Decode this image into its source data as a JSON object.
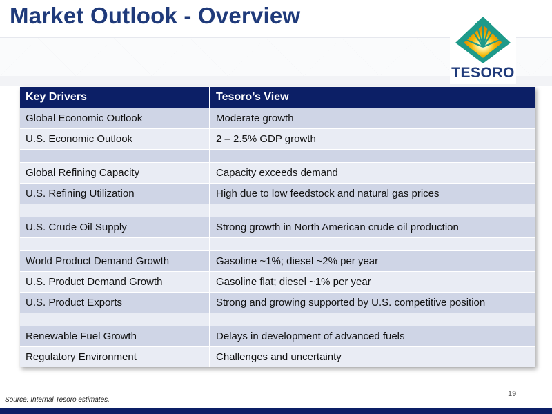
{
  "title": "Market Outlook - Overview",
  "logo": {
    "text": "TESORO"
  },
  "table": {
    "headers": [
      "Key Drivers",
      "Tesoro’s View"
    ],
    "rows": [
      {
        "driver": "Global Economic Outlook",
        "view": "Moderate growth"
      },
      {
        "driver": "U.S. Economic Outlook",
        "view": "2 – 2.5% GDP growth"
      },
      {
        "driver": "",
        "view": ""
      },
      {
        "driver": "Global Refining Capacity",
        "view": "Capacity exceeds demand"
      },
      {
        "driver": "U.S. Refining Utilization",
        "view": "High due to low feedstock and natural gas prices"
      },
      {
        "driver": "",
        "view": ""
      },
      {
        "driver": "U.S. Crude Oil Supply",
        "view": "Strong growth in North American crude oil production"
      },
      {
        "driver": "",
        "view": ""
      },
      {
        "driver": "World Product Demand Growth",
        "view": "Gasoline ~1%; diesel ~2% per year"
      },
      {
        "driver": "U.S. Product Demand Growth",
        "view": "Gasoline flat; diesel ~1% per year"
      },
      {
        "driver": "U.S. Product Exports",
        "view": "Strong and growing supported by U.S. competitive position"
      },
      {
        "driver": "",
        "view": ""
      },
      {
        "driver": "Renewable Fuel Growth",
        "view": "Delays in development of advanced fuels"
      },
      {
        "driver": "Regulatory Environment",
        "view": "Challenges and uncertainty"
      }
    ]
  },
  "page_number": "19",
  "source": "Source: Internal Tesoro estimates.",
  "colors": {
    "title": "#1f3a7a",
    "header_bg": "#0c1f66",
    "row_dark": "#cfd5e6",
    "row_light": "#e9ecf4",
    "logo_teal": "#1e9a8a",
    "logo_gold": "#f2b705"
  }
}
